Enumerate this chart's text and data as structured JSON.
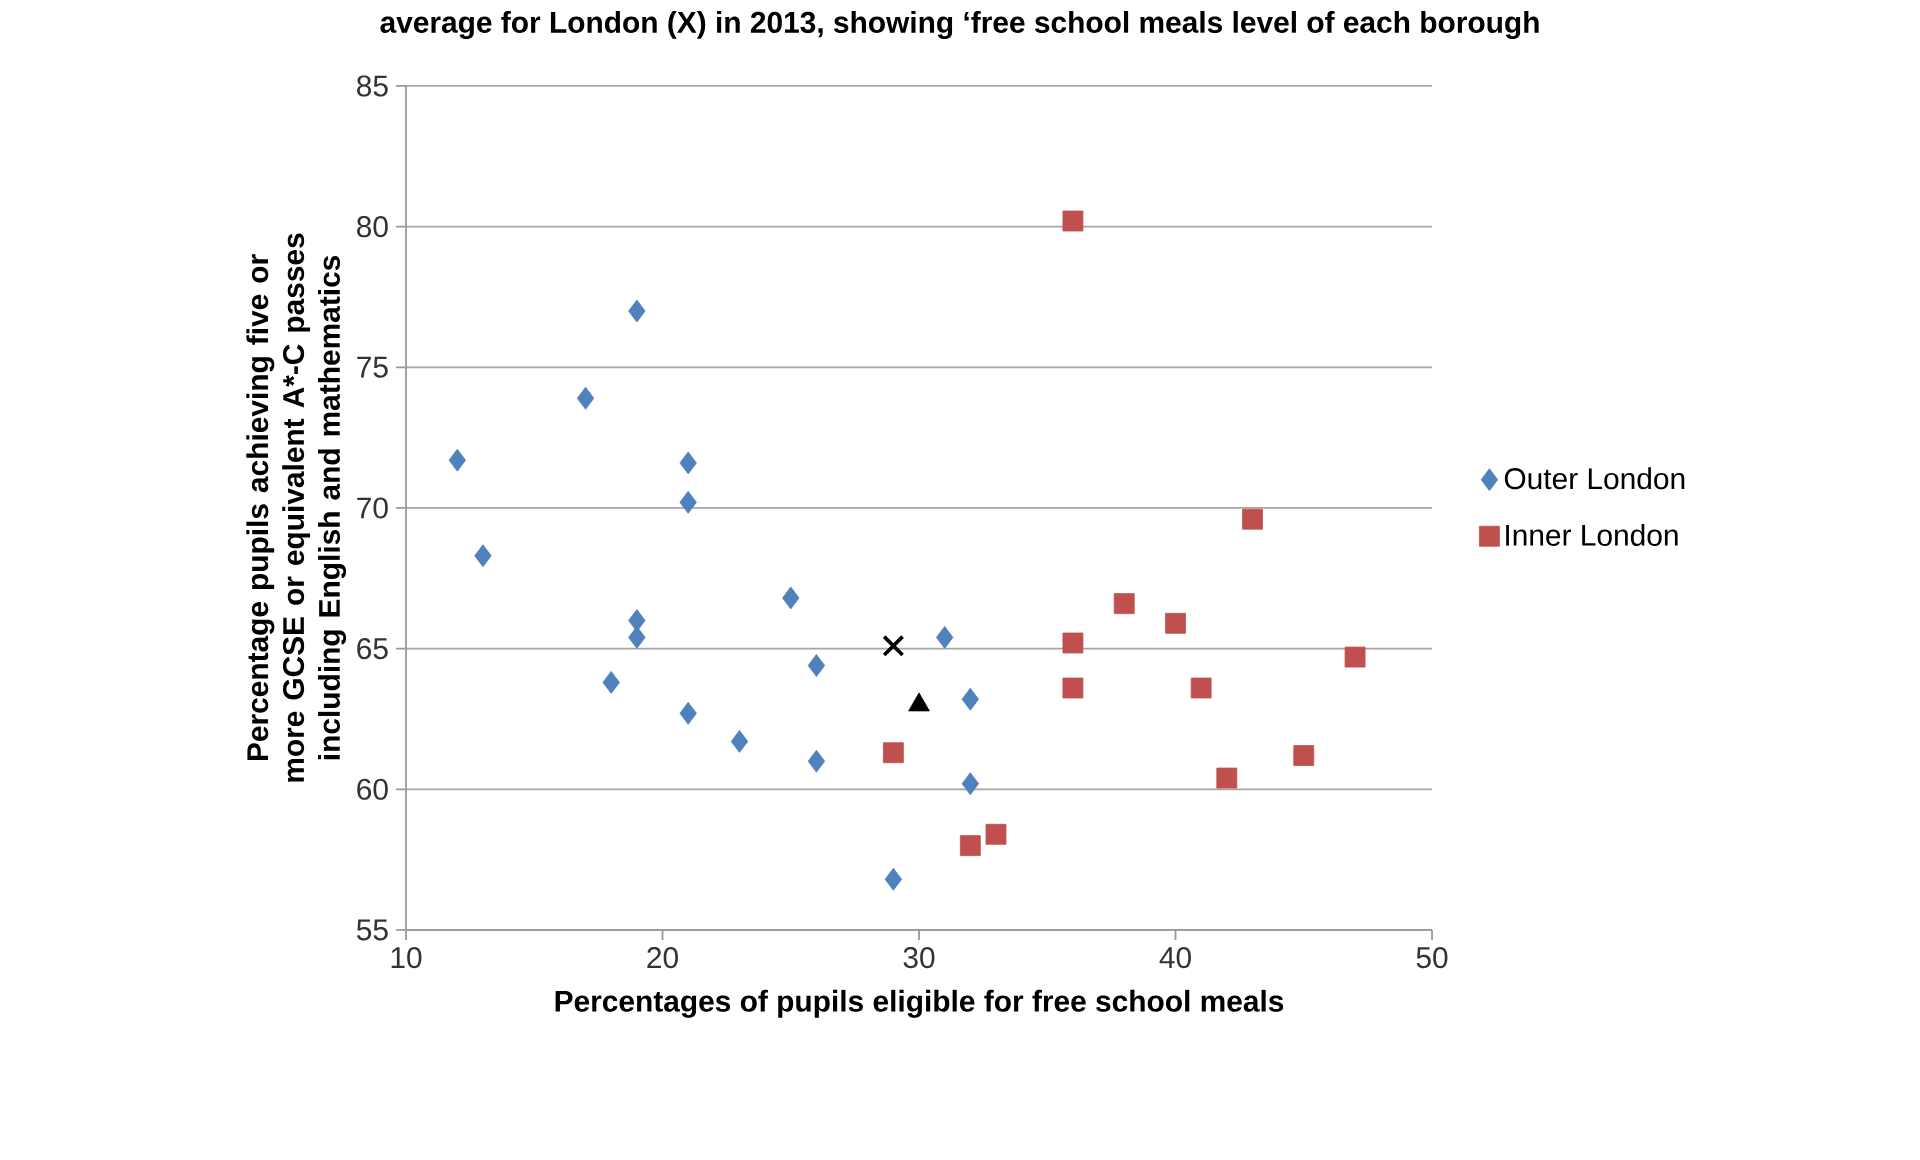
{
  "chart_data": {
    "type": "scatter",
    "title": "average for London (X) in 2013, showing ‘free school meals level of each borough",
    "xlabel": "Percentages of pupils eligible for free school meals",
    "ylabel": "Percentage pupils achieving five or more GCSE or equivalent A*-C passes including English and mathematics",
    "xlim": [
      10,
      50
    ],
    "xticks": [
      10,
      20,
      30,
      40,
      50
    ],
    "ylim": [
      55,
      85
    ],
    "yticks": [
      55,
      60,
      65,
      70,
      75,
      80,
      85
    ],
    "grid": "y",
    "legend": "right",
    "series": [
      {
        "name": "Outer London",
        "color": "#4f81bd",
        "marker": "diamond",
        "x": [
          12,
          13,
          17,
          19,
          21,
          21,
          19,
          19,
          18,
          21,
          23,
          25,
          26,
          26,
          29,
          31,
          32,
          32
        ],
        "values": [
          71.7,
          68.3,
          73.9,
          77.0,
          71.6,
          70.2,
          66.0,
          65.4,
          63.8,
          62.7,
          61.7,
          66.8,
          64.4,
          61.0,
          56.8,
          65.4,
          63.2,
          60.2
        ]
      },
      {
        "name": "Inner London",
        "color": "#c0504d",
        "marker": "square",
        "x": [
          36,
          43,
          38,
          40,
          36,
          36,
          41,
          47,
          45,
          42,
          29,
          32,
          33
        ],
        "values": [
          80.2,
          69.6,
          66.6,
          65.9,
          65.2,
          63.6,
          63.6,
          64.7,
          61.2,
          60.4,
          61.3,
          58.0,
          58.4
        ]
      },
      {
        "color": "#000000",
        "marker": "cross",
        "x": [
          29
        ],
        "values": [
          65.1
        ]
      },
      {
        "color": "#000000",
        "marker": "triangle",
        "x": [
          30
        ],
        "values": [
          63.0
        ]
      }
    ]
  }
}
